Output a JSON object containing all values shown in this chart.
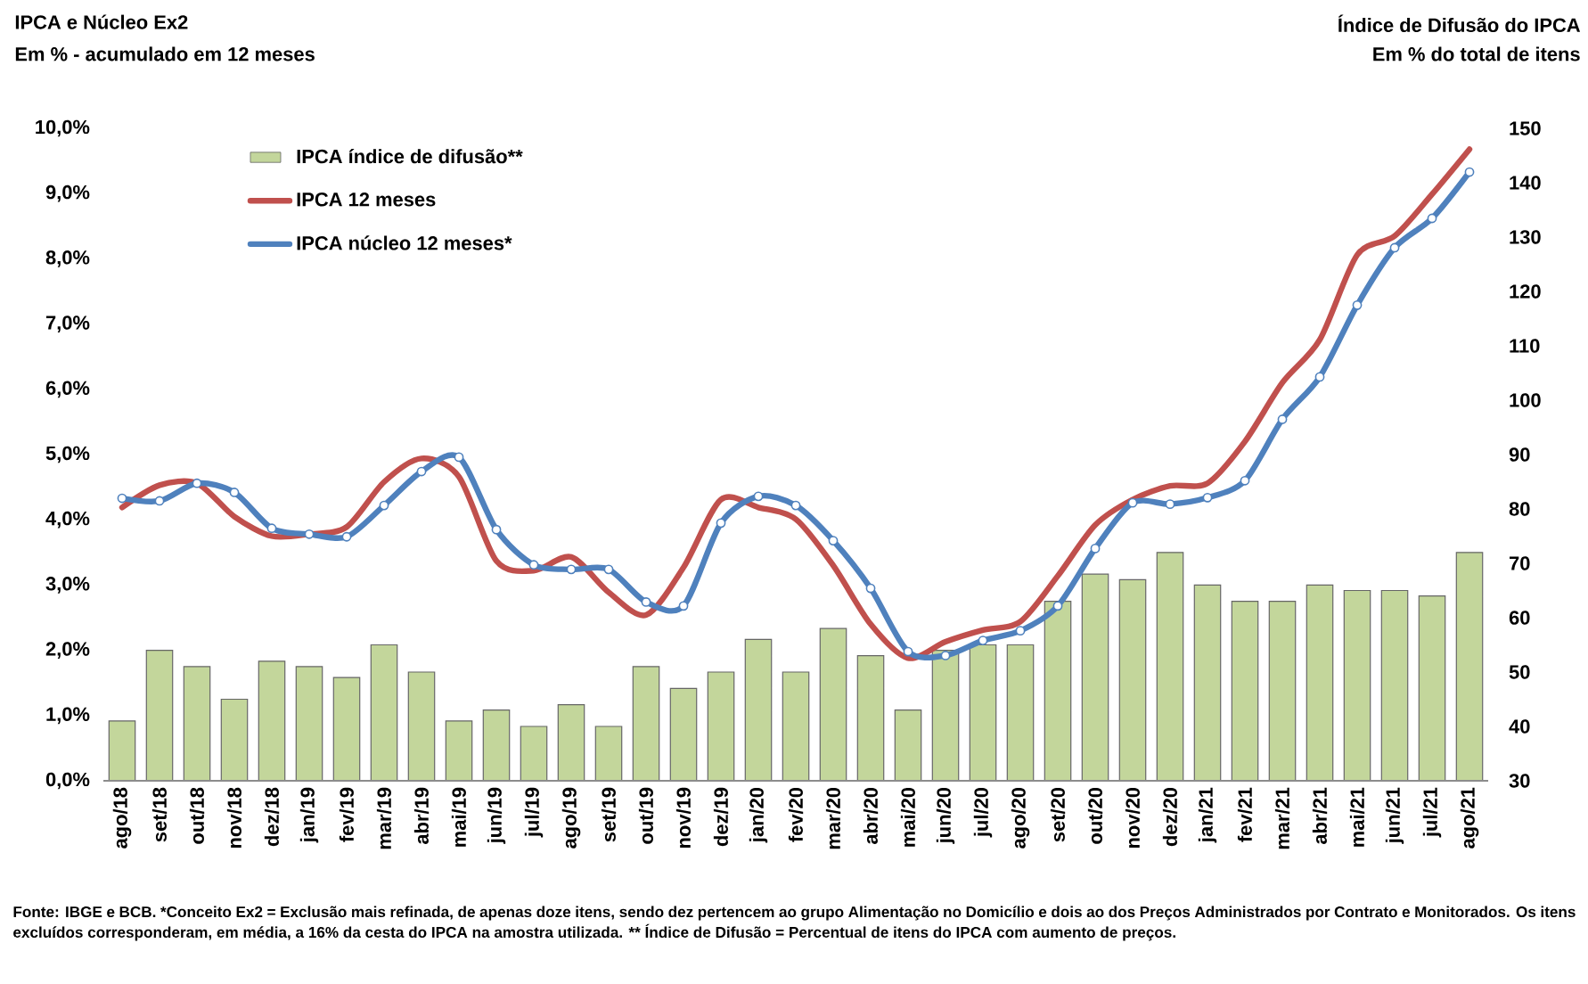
{
  "chart_data": {
    "type": "line",
    "title": "IPCA e Núcleo Ex2",
    "ylabel": "Em % - acumulado em 12 meses",
    "y2label": "Em % do total de itens",
    "annotations": [
      "Índice de Difusão do IPCA",
      "Fonte: IBGE e BCB. *Conceito Ex2 = Exclusão mais refinada, de apenas doze itens, sendo dez pertencem ao grupo Alimentação no Domicílio e dois ao dos Preços Administrados por Contrato e Monitorados. Os itens excluídos corresponderam, em média, a 16% da cesta do IPCA na amostra utilizada. ** Índice de Difusão = Percentual de itens do IPCA com aumento de preços."
    ],
    "categories": [
      "ago/18",
      "set/18",
      "out/18",
      "nov/18",
      "dez/18",
      "jan/19",
      "fev/19",
      "mar/19",
      "abr/19",
      "mai/19",
      "jun/19",
      "jul/19",
      "ago/19",
      "set/19",
      "out/19",
      "nov/19",
      "dez/19",
      "jan/20",
      "fev/20",
      "mar/20",
      "abr/20",
      "mai/20",
      "jun/20",
      "jul/20",
      "ago/20",
      "set/20",
      "out/20",
      "nov/20",
      "dez/20",
      "jan/21",
      "fev/21",
      "mar/21",
      "abr/21",
      "mai/21",
      "jun/21",
      "jul/21",
      "ago/21"
    ],
    "series": [
      {
        "name": "IPCA índice de difusão**",
        "type": "bar",
        "axis": "y2",
        "color": "#c3d69b",
        "values": [
          41,
          54,
          51,
          45,
          52,
          51,
          49,
          55,
          50,
          41,
          43,
          40,
          44,
          40,
          51,
          47,
          50,
          56,
          50,
          58,
          53,
          43,
          54,
          55,
          55,
          63,
          68,
          67,
          72,
          66,
          63,
          63,
          66,
          65,
          65,
          64,
          72
        ]
      },
      {
        "name": "IPCA 12 meses",
        "color": "#c0504d",
        "marker": "none",
        "values": [
          4.19,
          4.53,
          4.56,
          4.05,
          3.75,
          3.78,
          3.89,
          4.58,
          4.94,
          4.66,
          3.37,
          3.22,
          3.43,
          2.89,
          2.54,
          3.27,
          4.31,
          4.19,
          4.01,
          3.3,
          2.4,
          1.88,
          2.13,
          2.31,
          2.44,
          3.14,
          3.92,
          4.31,
          4.52,
          4.56,
          5.2,
          6.1,
          6.76,
          8.06,
          8.35,
          8.99,
          9.68
        ]
      },
      {
        "name": "IPCA núcleo 12 meses*",
        "color": "#4f81bd",
        "marker": "circle",
        "values": [
          4.33,
          4.29,
          4.56,
          4.42,
          3.87,
          3.78,
          3.74,
          4.22,
          4.74,
          4.96,
          3.85,
          3.31,
          3.24,
          3.24,
          2.74,
          2.68,
          3.95,
          4.36,
          4.22,
          3.68,
          2.95,
          1.98,
          1.92,
          2.15,
          2.3,
          2.68,
          3.56,
          4.26,
          4.24,
          4.34,
          4.6,
          5.54,
          6.19,
          7.29,
          8.17,
          8.62,
          9.33
        ]
      }
    ],
    "ylim": [
      0,
      10
    ],
    "yticks": [
      {
        "value": 0,
        "label": "0,0%"
      },
      {
        "value": 1,
        "label": "1,0%"
      },
      {
        "value": 2,
        "label": "2,0%"
      },
      {
        "value": 3,
        "label": "3,0%"
      },
      {
        "value": 4,
        "label": "4,0%"
      },
      {
        "value": 5,
        "label": "5,0%"
      },
      {
        "value": 6,
        "label": "6,0%"
      },
      {
        "value": 7,
        "label": "7,0%"
      },
      {
        "value": 8,
        "label": "8,0%"
      },
      {
        "value": 9,
        "label": "9,0%"
      },
      {
        "value": 10,
        "label": "10,0%"
      }
    ],
    "y2lim": [
      30,
      150
    ],
    "y2ticks": [
      30,
      40,
      50,
      60,
      70,
      80,
      90,
      100,
      110,
      120,
      130,
      140,
      150
    ],
    "legend": "top left"
  }
}
